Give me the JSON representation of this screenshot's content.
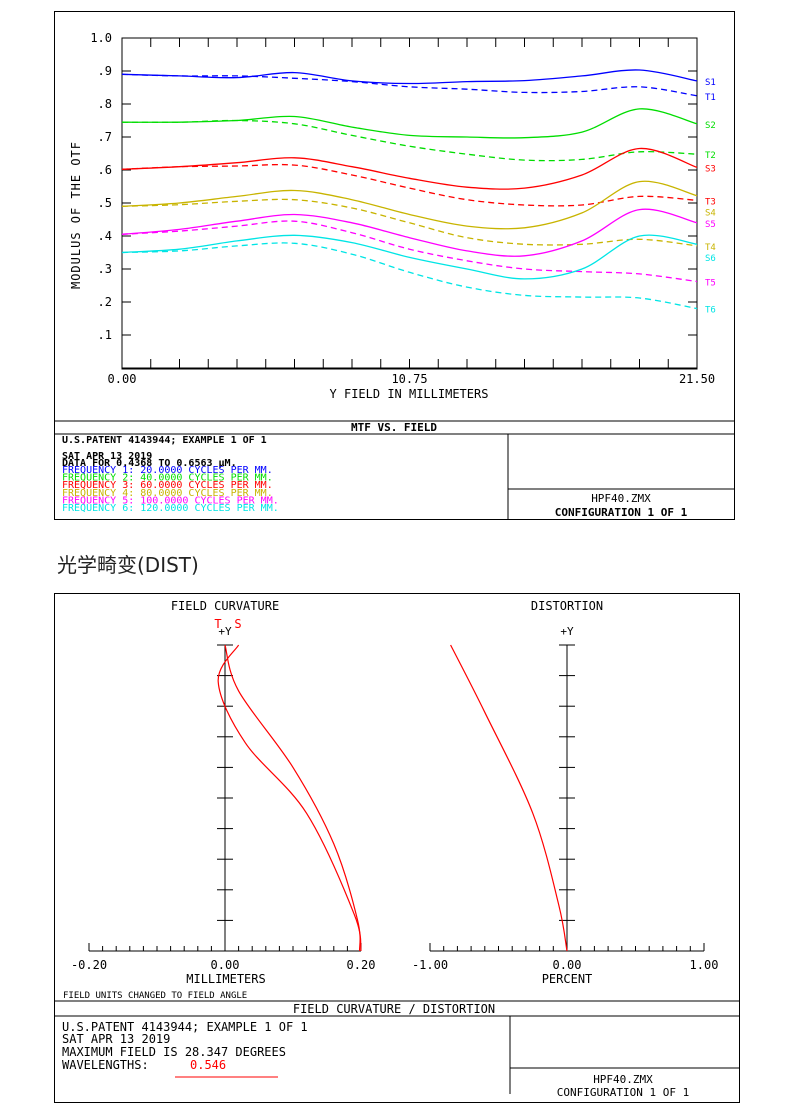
{
  "section_heading": "光学畸变(DIST)",
  "mtf": {
    "title": "MTF VS. FIELD",
    "info": [
      "U.S.PATENT 4143944; EXAMPLE 1 OF 1",
      "SAT APR 13 2019",
      "DATA FOR 0.4368 TO 0.6563 μM."
    ],
    "frequencies": [
      {
        "text": "FREQUENCY 1:   20.0000 CYCLES PER MM.",
        "color": "#0000ff"
      },
      {
        "text": "FREQUENCY 2:   40.0000 CYCLES PER MM.",
        "color": "#00dd00"
      },
      {
        "text": "FREQUENCY 3:   60.0000 CYCLES PER MM.",
        "color": "#ff0000"
      },
      {
        "text": "FREQUENCY 4:   80.0000 CYCLES PER MM.",
        "color": "#c8b400"
      },
      {
        "text": "FREQUENCY 5:  100.0000 CYCLES PER MM.",
        "color": "#ff00ff"
      },
      {
        "text": "FREQUENCY 6:  120.0000 CYCLES PER MM.",
        "color": "#00e5e5"
      }
    ],
    "file": "HPF40.ZMX",
    "config": "CONFIGURATION 1 OF 1"
  },
  "dist": {
    "title": "FIELD CURVATURE / DISTORTION",
    "fc_title": "FIELD CURVATURE",
    "dist_title": "DISTORTION",
    "fc_xlabel": "MILLIMETERS",
    "dist_xlabel": "PERCENT",
    "field_note": "FIELD UNITS CHANGED TO FIELD ANGLE",
    "y_marker": "+Y",
    "t_label": "T",
    "s_label": "S",
    "info": [
      "U.S.PATENT 4143944; EXAMPLE 1 OF 1",
      "SAT APR 13 2019",
      "MAXIMUM FIELD IS 28.347 DEGREES"
    ],
    "wavelengths_label": "WAVELENGTHS:",
    "wavelength": "0.546",
    "file": "HPF40.ZMX",
    "config": "CONFIGURATION 1 OF 1"
  },
  "chart_data": [
    {
      "type": "line",
      "title": "MTF VS. FIELD",
      "xlabel": "Y FIELD IN MILLIMETERS",
      "ylabel": "MODULUS OF THE OTF",
      "xlim": [
        0,
        21.5
      ],
      "ylim": [
        0,
        1.0
      ],
      "x_ticks": [
        "0.00",
        "10.75",
        "21.50"
      ],
      "y_ticks": [
        ".1",
        ".2",
        ".3",
        ".4",
        ".5",
        ".6",
        ".7",
        ".8",
        ".9",
        "1.0"
      ],
      "x": [
        0,
        2.15,
        4.3,
        6.45,
        8.6,
        10.75,
        12.9,
        15.05,
        17.2,
        19.35,
        21.5
      ],
      "series": [
        {
          "name": "S1",
          "color": "#0000ff",
          "dash": false,
          "values": [
            0.89,
            0.885,
            0.88,
            0.895,
            0.87,
            0.862,
            0.868,
            0.871,
            0.885,
            0.903,
            0.87
          ]
        },
        {
          "name": "T1",
          "color": "#0000ff",
          "dash": true,
          "values": [
            0.89,
            0.885,
            0.885,
            0.878,
            0.868,
            0.852,
            0.845,
            0.835,
            0.838,
            0.852,
            0.825
          ]
        },
        {
          "name": "S2",
          "color": "#00dd00",
          "dash": false,
          "values": [
            0.745,
            0.745,
            0.75,
            0.762,
            0.73,
            0.705,
            0.7,
            0.698,
            0.715,
            0.785,
            0.74
          ]
        },
        {
          "name": "T2",
          "color": "#00dd00",
          "dash": true,
          "values": [
            0.745,
            0.745,
            0.75,
            0.74,
            0.705,
            0.672,
            0.648,
            0.63,
            0.632,
            0.655,
            0.648
          ]
        },
        {
          "name": "S3",
          "color": "#ff0000",
          "dash": false,
          "values": [
            0.602,
            0.61,
            0.622,
            0.637,
            0.61,
            0.575,
            0.548,
            0.545,
            0.585,
            0.665,
            0.608
          ]
        },
        {
          "name": "T3",
          "color": "#ff0000",
          "dash": true,
          "values": [
            0.602,
            0.61,
            0.612,
            0.615,
            0.585,
            0.545,
            0.51,
            0.494,
            0.494,
            0.52,
            0.508
          ]
        },
        {
          "name": "S4",
          "color": "#c8b400",
          "dash": false,
          "values": [
            0.49,
            0.5,
            0.52,
            0.538,
            0.51,
            0.465,
            0.43,
            0.425,
            0.47,
            0.565,
            0.522
          ]
        },
        {
          "name": "T4",
          "color": "#c8b400",
          "dash": true,
          "values": [
            0.49,
            0.495,
            0.505,
            0.51,
            0.485,
            0.44,
            0.395,
            0.375,
            0.375,
            0.39,
            0.37
          ]
        },
        {
          "name": "S5",
          "color": "#ff00ff",
          "dash": false,
          "values": [
            0.405,
            0.42,
            0.445,
            0.465,
            0.44,
            0.395,
            0.355,
            0.34,
            0.385,
            0.48,
            0.44
          ]
        },
        {
          "name": "T5",
          "color": "#ff00ff",
          "dash": true,
          "values": [
            0.405,
            0.415,
            0.43,
            0.445,
            0.41,
            0.36,
            0.325,
            0.3,
            0.292,
            0.285,
            0.262
          ]
        },
        {
          "name": "S6",
          "color": "#00e5e5",
          "dash": false,
          "values": [
            0.35,
            0.36,
            0.385,
            0.402,
            0.38,
            0.335,
            0.3,
            0.27,
            0.3,
            0.4,
            0.375
          ]
        },
        {
          "name": "T6",
          "color": "#00e5e5",
          "dash": true,
          "values": [
            0.35,
            0.355,
            0.37,
            0.378,
            0.345,
            0.29,
            0.245,
            0.22,
            0.215,
            0.212,
            0.18
          ]
        }
      ]
    },
    {
      "type": "line",
      "title": "FIELD CURVATURE",
      "xlabel": "MILLIMETERS",
      "xlim": [
        -0.2,
        0.2
      ],
      "ylim": [
        0,
        1
      ],
      "x_ticks": [
        "-0.20",
        "0.00",
        "0.20"
      ],
      "series": [
        {
          "name": "T",
          "color": "#ff0000",
          "x": [
            0.0,
            0.02,
            0.1,
            0.16,
            0.195,
            0.198
          ],
          "y": [
            1.0,
            0.85,
            0.6,
            0.35,
            0.1,
            0.0
          ]
        },
        {
          "name": "S",
          "color": "#ff0000",
          "x": [
            0.02,
            -0.01,
            0.03,
            0.12,
            0.19,
            0.2
          ],
          "y": [
            1.0,
            0.88,
            0.68,
            0.45,
            0.12,
            0.0
          ]
        }
      ]
    },
    {
      "type": "line",
      "title": "DISTORTION",
      "xlabel": "PERCENT",
      "xlim": [
        -1.0,
        1.0
      ],
      "ylim": [
        0,
        1
      ],
      "x_ticks": [
        "-1.00",
        "0.00",
        "1.00"
      ],
      "series": [
        {
          "name": "Distortion",
          "color": "#ff0000",
          "x": [
            -0.85,
            -0.6,
            -0.25,
            -0.06,
            0.0
          ],
          "y": [
            1.0,
            0.78,
            0.45,
            0.15,
            0.0
          ]
        }
      ]
    }
  ]
}
